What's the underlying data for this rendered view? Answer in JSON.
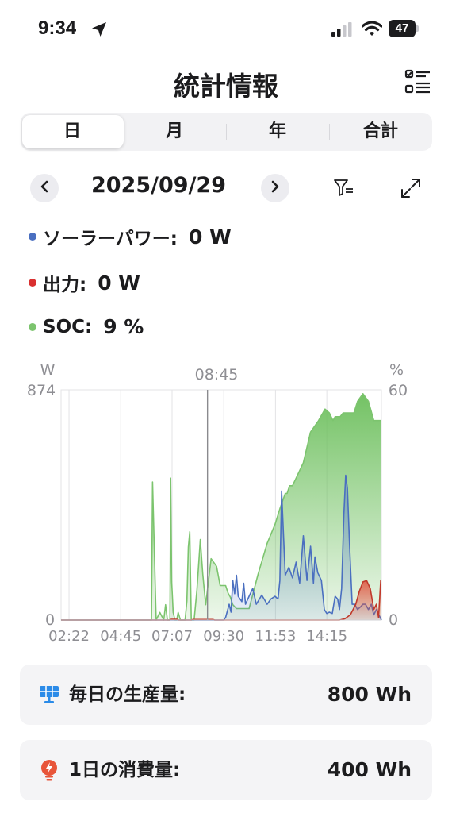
{
  "status_bar": {
    "time": "9:34",
    "battery": "47"
  },
  "header": {
    "title": "統計情報"
  },
  "tabs": [
    {
      "label": "日",
      "selected": true
    },
    {
      "label": "月",
      "selected": false
    },
    {
      "label": "年",
      "selected": false
    },
    {
      "label": "合計",
      "selected": false
    }
  ],
  "date_nav": {
    "date": "2025/09/29"
  },
  "legend": [
    {
      "label": "ソーラーパワー:",
      "value": "0 W",
      "color": "#4a6fc0"
    },
    {
      "label": "出力:",
      "value": "0 W",
      "color": "#d93030"
    },
    {
      "label": "SOC:",
      "value": "9 %",
      "color": "#7cc46e"
    }
  ],
  "chart_data": {
    "type": "area",
    "left_unit": "W",
    "right_unit": "%",
    "cursor_label": "08:45",
    "left_axis": {
      "min": 0,
      "max": 874,
      "min_label": "0",
      "max_label": "874"
    },
    "right_axis": {
      "min": 0,
      "max": 60,
      "min_label": "0",
      "max_label": "60"
    },
    "x_range_minutes": [
      120,
      1006
    ],
    "x_ticks": [
      {
        "label": "02:22",
        "min": 142
      },
      {
        "label": "04:45",
        "min": 285
      },
      {
        "label": "07:07",
        "min": 427
      },
      {
        "label": "09:30",
        "min": 570
      },
      {
        "label": "11:53",
        "min": 713
      },
      {
        "label": "14:15",
        "min": 855
      }
    ],
    "cursor_min": 525,
    "series": [
      {
        "key": "soc",
        "color": "#7cc46e",
        "axis": "right",
        "x": [
          120,
          370,
          373,
          383,
          393,
          404,
          409,
          414,
          421,
          423,
          426,
          430,
          435,
          440,
          444,
          450,
          455,
          463,
          468,
          472,
          476,
          480,
          488,
          496,
          505,
          512,
          520,
          535,
          550,
          560,
          575,
          582,
          588,
          595,
          605,
          620,
          640,
          665,
          690,
          712,
          725,
          740,
          745,
          752,
          760,
          770,
          790,
          810,
          832,
          850,
          862,
          872,
          878,
          892,
          900,
          915,
          930,
          940,
          955,
          970,
          985,
          1006
        ],
        "y": [
          0,
          0,
          36,
          0,
          2,
          0,
          4,
          0,
          0,
          37,
          10,
          2,
          0,
          0,
          2,
          0,
          0,
          0,
          5,
          19,
          23,
          0,
          0,
          8,
          21,
          12,
          4,
          16,
          14,
          9,
          9,
          7,
          6,
          4,
          3,
          3,
          3,
          12,
          20,
          25,
          29,
          33,
          33,
          35,
          35,
          37,
          41,
          49,
          52,
          55,
          54,
          52,
          53,
          53,
          54,
          54,
          54,
          57,
          59,
          57,
          52,
          52
        ]
      },
      {
        "key": "solar",
        "color": "#4a6fc0",
        "axis": "left",
        "x": [
          120,
          570,
          575,
          585,
          590,
          595,
          600,
          605,
          610,
          620,
          625,
          630,
          640,
          650,
          660,
          675,
          690,
          700,
          712,
          720,
          725,
          730,
          740,
          750,
          760,
          770,
          780,
          790,
          800,
          810,
          818,
          822,
          830,
          840,
          848,
          855,
          862,
          870,
          878,
          885,
          890,
          896,
          902,
          907,
          912,
          918,
          925,
          932,
          940,
          948,
          955,
          962,
          970,
          978,
          985,
          992,
          1006
        ],
        "y": [
          0,
          0,
          10,
          60,
          30,
          150,
          100,
          170,
          90,
          70,
          140,
          60,
          90,
          120,
          60,
          95,
          60,
          80,
          90,
          80,
          150,
          490,
          170,
          200,
          160,
          220,
          140,
          320,
          150,
          280,
          140,
          240,
          180,
          150,
          40,
          25,
          30,
          25,
          90,
          80,
          40,
          120,
          400,
          550,
          500,
          280,
          60,
          60,
          40,
          50,
          60,
          60,
          40,
          60,
          20,
          40,
          0
        ]
      },
      {
        "key": "output",
        "color": "#c0392b",
        "axis": "left",
        "x": [
          120,
          420,
          425,
          440,
          445,
          480,
          485,
          540,
          545,
          890,
          905,
          920,
          935,
          945,
          955,
          965,
          975,
          985,
          992,
          998,
          1004,
          1006
        ],
        "y": [
          0,
          0,
          3,
          3,
          0,
          0,
          2,
          2,
          0,
          0,
          5,
          20,
          60,
          110,
          145,
          150,
          120,
          40,
          60,
          10,
          150,
          150
        ]
      }
    ]
  },
  "cards": [
    {
      "label": "毎日の生産量:",
      "value": "800 Wh"
    },
    {
      "label": "1日の消費量:",
      "value": "400 Wh"
    }
  ]
}
